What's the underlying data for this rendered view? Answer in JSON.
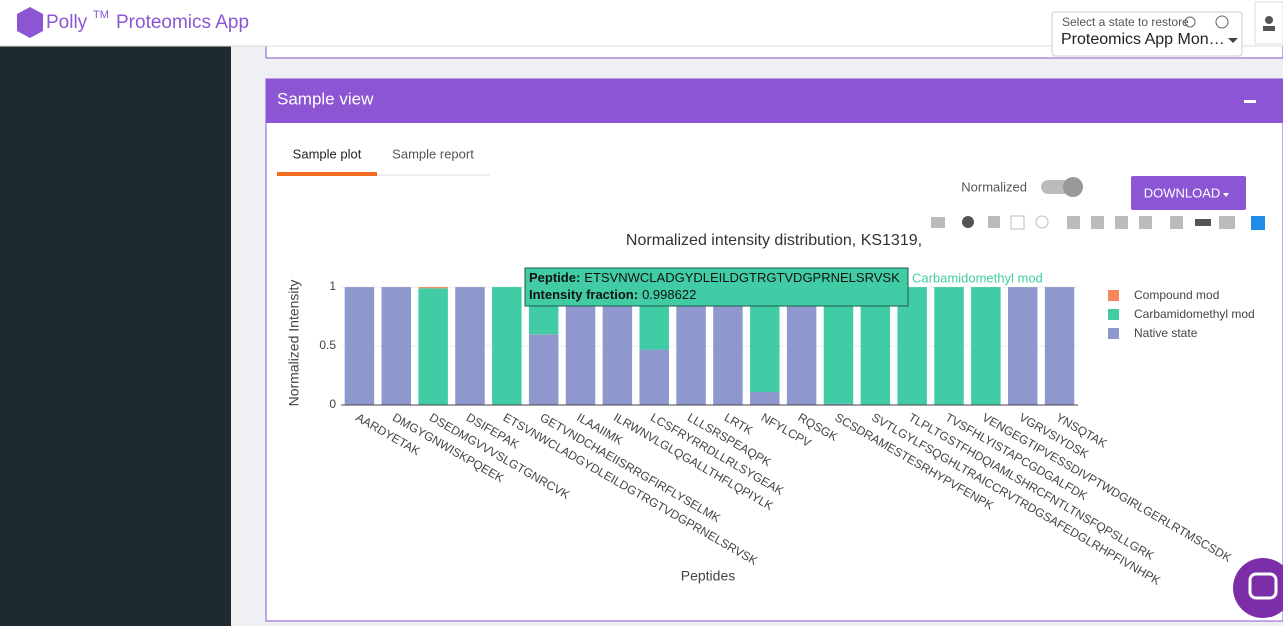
{
  "header": {
    "brand": "Polly",
    "trademark": "TM",
    "app": "Proteomics App",
    "state_label": "Select a state to restore",
    "state_value": "Proteomics App Mon…"
  },
  "panel": {
    "title": "Sample view",
    "tabs": [
      "Sample plot",
      "Sample report"
    ],
    "toggle_label": "Normalized",
    "download": "DOWNLOAD"
  },
  "chart_data": {
    "type": "stacked_bar",
    "title": "Normalized intensity distribution, KS1319,",
    "x_label": "Peptides",
    "y_label": "Normalized Intensity",
    "categories": [
      "AARDYETAK",
      "DMGYGNWISKPQEEK",
      "DSEDMGVVVSLGTGNRCVK",
      "DSIFEPAK",
      "ETSVNWCLADGYDLEILDGTRGTVDGPRNELSRVSK",
      "GETVNDCHAEIISRRGFIRFLYSELMK",
      "ILAAIIMK",
      "ILRWNVLGLQGALLTHFLQPIYLK",
      "LCSFRYRRDLLRLSYGEAK",
      "LLLSRSPEAQPK",
      "LRTK",
      "NFYLCPV",
      "RQSGK",
      "SCSDRAMESTESRHYPVFENPK",
      "SVTLGYLFSQGHLTRAICCRVTRDGSAFEDGLRHPFIVNHPK",
      "TLPLTGSTFHDQIAMLSHRCFNTLTNSFQPSLLGRK",
      "TVSFHLYISTAPCGDGALFDK",
      "VENGEGTIPVESSDIVPTWDGIRLGERLRTMSCSDK",
      "VGRVSIYDSK",
      "YNSQTAK"
    ],
    "series": [
      {
        "name": "Native state",
        "color": "#8f98cc",
        "values": [
          1,
          1,
          0,
          1,
          0.001378,
          0.6,
          1,
          1,
          0.47,
          1,
          1,
          0.11,
          1,
          0.01,
          0,
          0,
          0,
          0,
          1,
          1
        ]
      },
      {
        "name": "Carbamidomethyl mod",
        "color": "#41cca6",
        "values": [
          0,
          0,
          0.99,
          0,
          0.998622,
          0.4,
          0,
          0,
          0.53,
          0,
          0,
          0.89,
          0,
          0.99,
          1,
          1,
          1,
          1,
          0,
          0
        ]
      },
      {
        "name": "Compound mod",
        "color": "#f7875a",
        "values": [
          0,
          0,
          0.01,
          0,
          0,
          0,
          0,
          0,
          0,
          0,
          0,
          0,
          0,
          0,
          0,
          0,
          0,
          0,
          0,
          0
        ]
      }
    ],
    "ylim": [
      0,
      1.06
    ],
    "yticks": [
      0,
      0.5,
      1
    ],
    "grid": true,
    "tooltip": {
      "peptide_label": "Peptide:",
      "peptide": "ETSVNWCLADGYDLEILDGTRGTVDGPRNELSRVSK",
      "fraction_label": "Intensity fraction:",
      "fraction": 0.998622,
      "series": "Carbamidomethyl mod"
    }
  }
}
